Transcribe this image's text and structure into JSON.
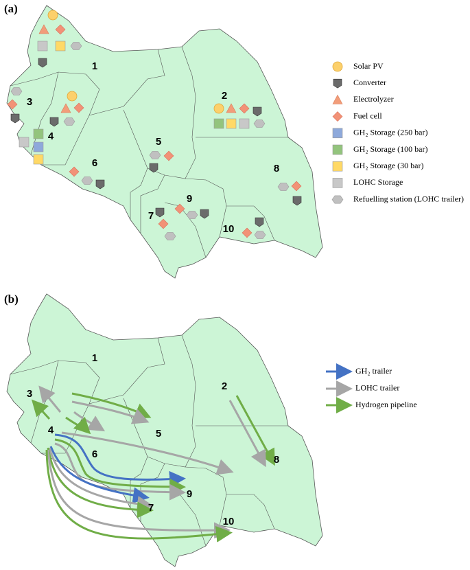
{
  "panels": [
    {
      "label": "(a)",
      "regions": [
        "1",
        "2",
        "3",
        "4",
        "5",
        "6",
        "7",
        "8",
        "9",
        "10"
      ],
      "legend": [
        "Solar PV",
        "Converter",
        "Electrolyzer",
        "Fuel cell",
        "GH₂ Storage (250 bar)",
        "GH₂ Storage (100 bar)",
        "GH₂ Storage (30 bar)",
        "LOHC Storage",
        "Refuelling station (LOHC trailer)"
      ]
    },
    {
      "label": "(b)",
      "regions": [
        "1",
        "2",
        "3",
        "4",
        "5",
        "6",
        "7",
        "8",
        "9",
        "10"
      ],
      "legend": [
        "GH₂ trailer",
        "LOHC trailer",
        "Hydrogen pipeline"
      ]
    }
  ]
}
